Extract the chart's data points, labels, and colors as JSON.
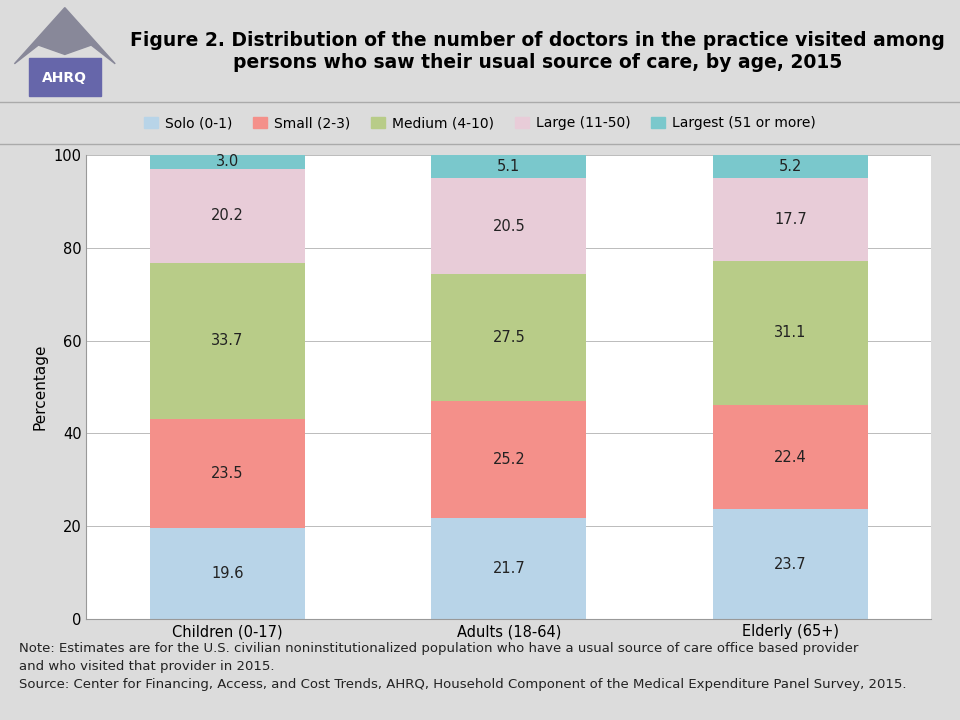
{
  "title": "Figure 2. Distribution of the number of doctors in the practice visited among\npersons who saw their usual source of care, by age, 2015",
  "categories": [
    "Children (0-17)",
    "Adults (18-64)",
    "Elderly (65+)"
  ],
  "series": [
    {
      "label": "Solo (0-1)",
      "values": [
        19.6,
        21.7,
        23.7
      ],
      "color": "#b8d4e8"
    },
    {
      "label": "Small (2-3)",
      "values": [
        23.5,
        25.2,
        22.4
      ],
      "color": "#f4908a"
    },
    {
      "label": "Medium (4-10)",
      "values": [
        33.7,
        27.5,
        31.1
      ],
      "color": "#b8cc88"
    },
    {
      "label": "Large (11-50)",
      "values": [
        20.2,
        20.5,
        17.7
      ],
      "color": "#e8ccd8"
    },
    {
      "label": "Largest (51 or more)",
      "values": [
        3.0,
        5.1,
        5.2
      ],
      "color": "#7ac8cc"
    }
  ],
  "ylabel": "Percentage",
  "ylim": [
    0,
    100
  ],
  "yticks": [
    0,
    20,
    40,
    60,
    80,
    100
  ],
  "bg_color": "#dcdcdc",
  "chart_bg": "#ffffff",
  "bar_width": 0.55,
  "title_fontsize": 13.5,
  "axis_fontsize": 11,
  "tick_fontsize": 10.5,
  "value_fontsize": 10.5,
  "note_fontsize": 9.5,
  "legend_fontsize": 10,
  "note_line1": "Note: Estimates are for the U.S. civilian noninstitutionalized population who have a usual source of care office based provider",
  "note_line2": "and who visited that provider in 2015.",
  "note_line3": "Source: Center for Financing, Access, and Cost Trends, AHRQ, Household Component of the Medical Expenditure Panel Survey, 2015."
}
